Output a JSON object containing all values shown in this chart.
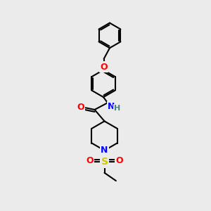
{
  "background_color": "#ebebeb",
  "bond_color": "#000000",
  "atom_colors": {
    "O": "#ff0000",
    "N": "#0000ff",
    "S": "#cccc00",
    "H": "#4a8080",
    "C": "#000000"
  },
  "line_width": 1.5,
  "figsize": [
    3.0,
    3.0
  ],
  "dpi": 100
}
